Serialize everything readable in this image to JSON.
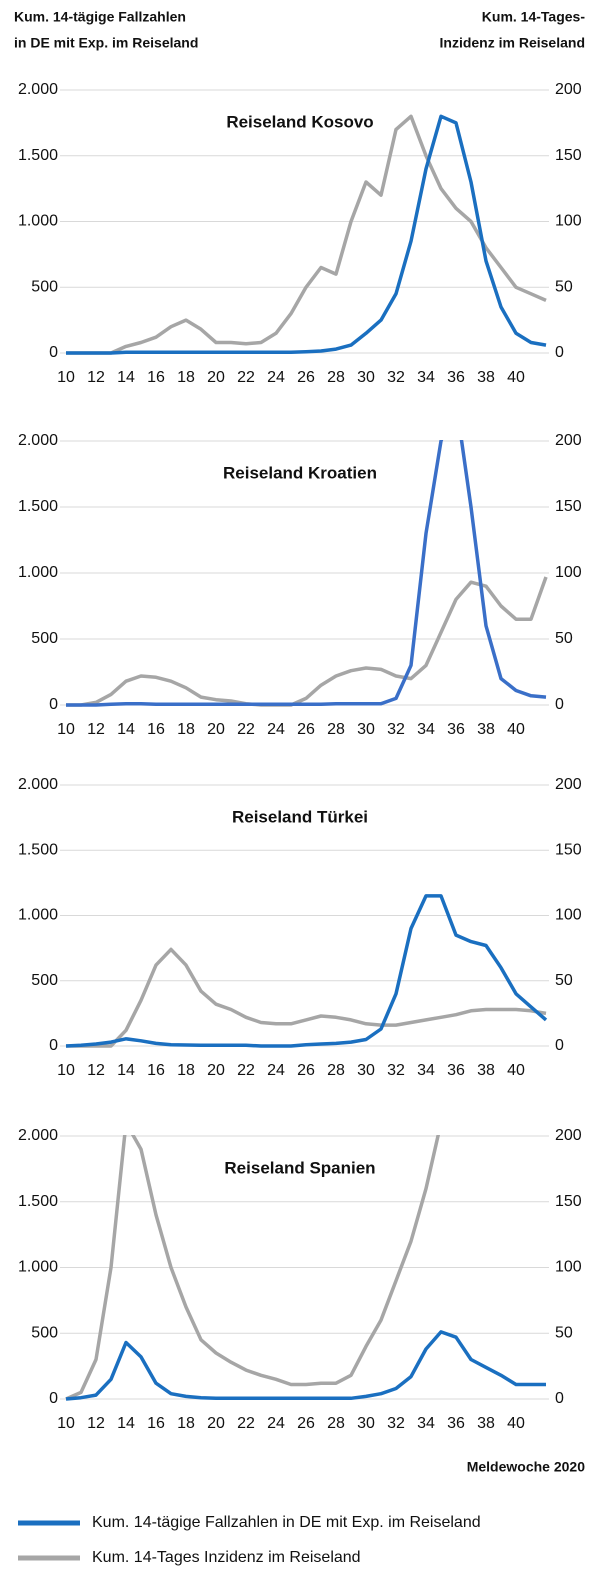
{
  "ylabel": [
    "Kum. 14-tägige Fallzahlen",
    "in DE mit Exp. im Reiseland"
  ],
  "y2label": [
    "Kum. 14-Tages-",
    "Inzidenz im Reiseland"
  ],
  "xlabel": "Meldewoche 2020",
  "chart_data": [
    {
      "type": "line",
      "title": "Reiseland Kosovo",
      "x": [
        10,
        11,
        12,
        13,
        14,
        15,
        16,
        17,
        18,
        19,
        20,
        21,
        22,
        23,
        24,
        25,
        26,
        27,
        28,
        29,
        30,
        31,
        32,
        33,
        34,
        35,
        36,
        37,
        38,
        39,
        40,
        41,
        42
      ],
      "xlim": [
        10,
        42
      ],
      "xticks": [
        10,
        12,
        14,
        16,
        18,
        20,
        22,
        24,
        26,
        28,
        30,
        32,
        34,
        36,
        38,
        40
      ],
      "ylim": [
        0,
        2000
      ],
      "yticks": [
        0,
        500,
        {
          "value": 1000,
          "label": "1.000"
        },
        {
          "value": 1500,
          "label": "1.500"
        },
        {
          "value": 2000,
          "label": "2.000"
        }
      ],
      "y2lim": [
        0,
        200
      ],
      "y2ticks": [
        0,
        50,
        100,
        150,
        200
      ],
      "grid": true,
      "series": [
        {
          "name": "Kum. 14-tägige Fallzahlen in DE mit Exp. im Reiseland",
          "color": "#1a6fc0",
          "values": [
            0,
            0,
            0,
            0,
            5,
            5,
            5,
            5,
            5,
            5,
            5,
            5,
            5,
            5,
            5,
            5,
            10,
            15,
            30,
            60,
            150,
            250,
            450,
            850,
            1400,
            1800,
            1750,
            1300,
            700,
            350,
            150,
            80,
            60
          ]
        },
        {
          "name": "Kum. 14-Tages Inzidenz im Reiseland",
          "color": "#a6a6a6",
          "axis": "y2",
          "values": [
            0,
            0,
            0,
            0,
            5,
            8,
            12,
            20,
            25,
            18,
            8,
            8,
            7,
            8,
            15,
            30,
            50,
            65,
            60,
            100,
            130,
            120,
            170,
            180,
            150,
            125,
            110,
            100,
            80,
            65,
            50,
            45,
            40
          ]
        }
      ]
    },
    {
      "type": "line",
      "title": "Reiseland Kroatien",
      "x": [
        10,
        11,
        12,
        13,
        14,
        15,
        16,
        17,
        18,
        19,
        20,
        21,
        22,
        23,
        24,
        25,
        26,
        27,
        28,
        29,
        30,
        31,
        32,
        33,
        34,
        35,
        36,
        37,
        38,
        39,
        40,
        41,
        42
      ],
      "xlim": [
        10,
        42
      ],
      "xticks": [
        10,
        12,
        14,
        16,
        18,
        20,
        22,
        24,
        26,
        28,
        30,
        32,
        34,
        36,
        38,
        40
      ],
      "ylim": [
        0,
        2000
      ],
      "yticks": [
        0,
        500,
        {
          "value": 1000,
          "label": "1.000"
        },
        {
          "value": 1500,
          "label": "1.500"
        },
        {
          "value": 2000,
          "label": "2.000"
        }
      ],
      "y2lim": [
        0,
        200
      ],
      "y2ticks": [
        0,
        50,
        100,
        150,
        200
      ],
      "grid": true,
      "series": [
        {
          "name": "Kum. 14-tägige Fallzahlen in DE mit Exp. im Reiseland",
          "color": "#3a6fc8",
          "values": [
            0,
            0,
            0,
            5,
            10,
            10,
            5,
            5,
            5,
            5,
            5,
            5,
            5,
            5,
            5,
            5,
            5,
            5,
            10,
            10,
            10,
            10,
            50,
            300,
            1300,
            2000,
            2300,
            1500,
            600,
            200,
            110,
            70,
            60
          ]
        },
        {
          "name": "Kum. 14-Tages Inzidenz im Reiseland",
          "color": "#a6a6a6",
          "axis": "y2",
          "values": [
            0,
            0,
            2,
            8,
            18,
            22,
            21,
            18,
            13,
            6,
            4,
            3,
            1,
            0,
            0,
            0,
            5,
            15,
            22,
            26,
            28,
            27,
            22,
            20,
            30,
            55,
            80,
            93,
            90,
            75,
            65,
            65,
            97
          ]
        }
      ]
    },
    {
      "type": "line",
      "title": "Reiseland Türkei",
      "x": [
        10,
        11,
        12,
        13,
        14,
        15,
        16,
        17,
        18,
        19,
        20,
        21,
        22,
        23,
        24,
        25,
        26,
        27,
        28,
        29,
        30,
        31,
        32,
        33,
        34,
        35,
        36,
        37,
        38,
        39,
        40,
        41,
        42
      ],
      "xlim": [
        10,
        42
      ],
      "xticks": [
        10,
        12,
        14,
        16,
        18,
        20,
        22,
        24,
        26,
        28,
        30,
        32,
        34,
        36,
        38,
        40
      ],
      "ylim": [
        0,
        2000
      ],
      "yticks": [
        0,
        500,
        {
          "value": 1000,
          "label": "1.000"
        },
        {
          "value": 1500,
          "label": "1.500"
        },
        {
          "value": 2000,
          "label": "2.000"
        }
      ],
      "y2lim": [
        0,
        200
      ],
      "y2ticks": [
        0,
        50,
        100,
        150,
        200
      ],
      "grid": true,
      "series": [
        {
          "name": "Kum. 14-tägige Fallzahlen in DE mit Exp. im Reiseland",
          "color": "#1a6fc0",
          "values": [
            0,
            5,
            15,
            30,
            55,
            40,
            20,
            10,
            8,
            5,
            5,
            5,
            5,
            0,
            0,
            0,
            10,
            15,
            20,
            30,
            50,
            130,
            400,
            900,
            1150,
            1150,
            850,
            800,
            770,
            600,
            400,
            300,
            200
          ]
        },
        {
          "name": "Kum. 14-Tages Inzidenz im Reiseland",
          "color": "#a6a6a6",
          "axis": "y2",
          "values": [
            0,
            0,
            0,
            0,
            12,
            35,
            62,
            74,
            62,
            42,
            32,
            28,
            22,
            18,
            17,
            17,
            20,
            23,
            22,
            20,
            17,
            16,
            16,
            18,
            20,
            22,
            24,
            27,
            28,
            28,
            28,
            27,
            25
          ]
        }
      ]
    },
    {
      "type": "line",
      "title": "Reiseland Spanien",
      "x": [
        10,
        11,
        12,
        13,
        14,
        15,
        16,
        17,
        18,
        19,
        20,
        21,
        22,
        23,
        24,
        25,
        26,
        27,
        28,
        29,
        30,
        31,
        32,
        33,
        34,
        35,
        36,
        37,
        38,
        39,
        40,
        41,
        42
      ],
      "xlim": [
        10,
        42
      ],
      "xticks": [
        10,
        12,
        14,
        16,
        18,
        20,
        22,
        24,
        26,
        28,
        30,
        32,
        34,
        36,
        38,
        40
      ],
      "ylim": [
        0,
        2000
      ],
      "yticks": [
        0,
        500,
        {
          "value": 1000,
          "label": "1.000"
        },
        {
          "value": 1500,
          "label": "1.500"
        },
        {
          "value": 2000,
          "label": "2.000"
        }
      ],
      "y2lim": [
        0,
        200
      ],
      "y2ticks": [
        0,
        50,
        100,
        150,
        200
      ],
      "grid": true,
      "series": [
        {
          "name": "Kum. 14-tägige Fallzahlen in DE mit Exp. im Reiseland",
          "color": "#1a6fc0",
          "values": [
            0,
            10,
            30,
            150,
            430,
            320,
            120,
            40,
            20,
            10,
            5,
            5,
            5,
            5,
            5,
            5,
            5,
            5,
            5,
            5,
            20,
            40,
            80,
            170,
            380,
            510,
            470,
            300,
            240,
            180,
            110,
            110,
            110
          ]
        },
        {
          "name": "Kum. 14-Tages Inzidenz im Reiseland",
          "color": "#a6a6a6",
          "axis": "y2",
          "values": [
            0,
            5,
            30,
            100,
            210,
            190,
            140,
            100,
            70,
            45,
            35,
            28,
            22,
            18,
            15,
            11,
            11,
            12,
            12,
            18,
            40,
            60,
            90,
            120,
            160,
            210,
            230,
            null,
            null,
            null,
            null,
            null,
            null
          ]
        }
      ]
    }
  ]
}
